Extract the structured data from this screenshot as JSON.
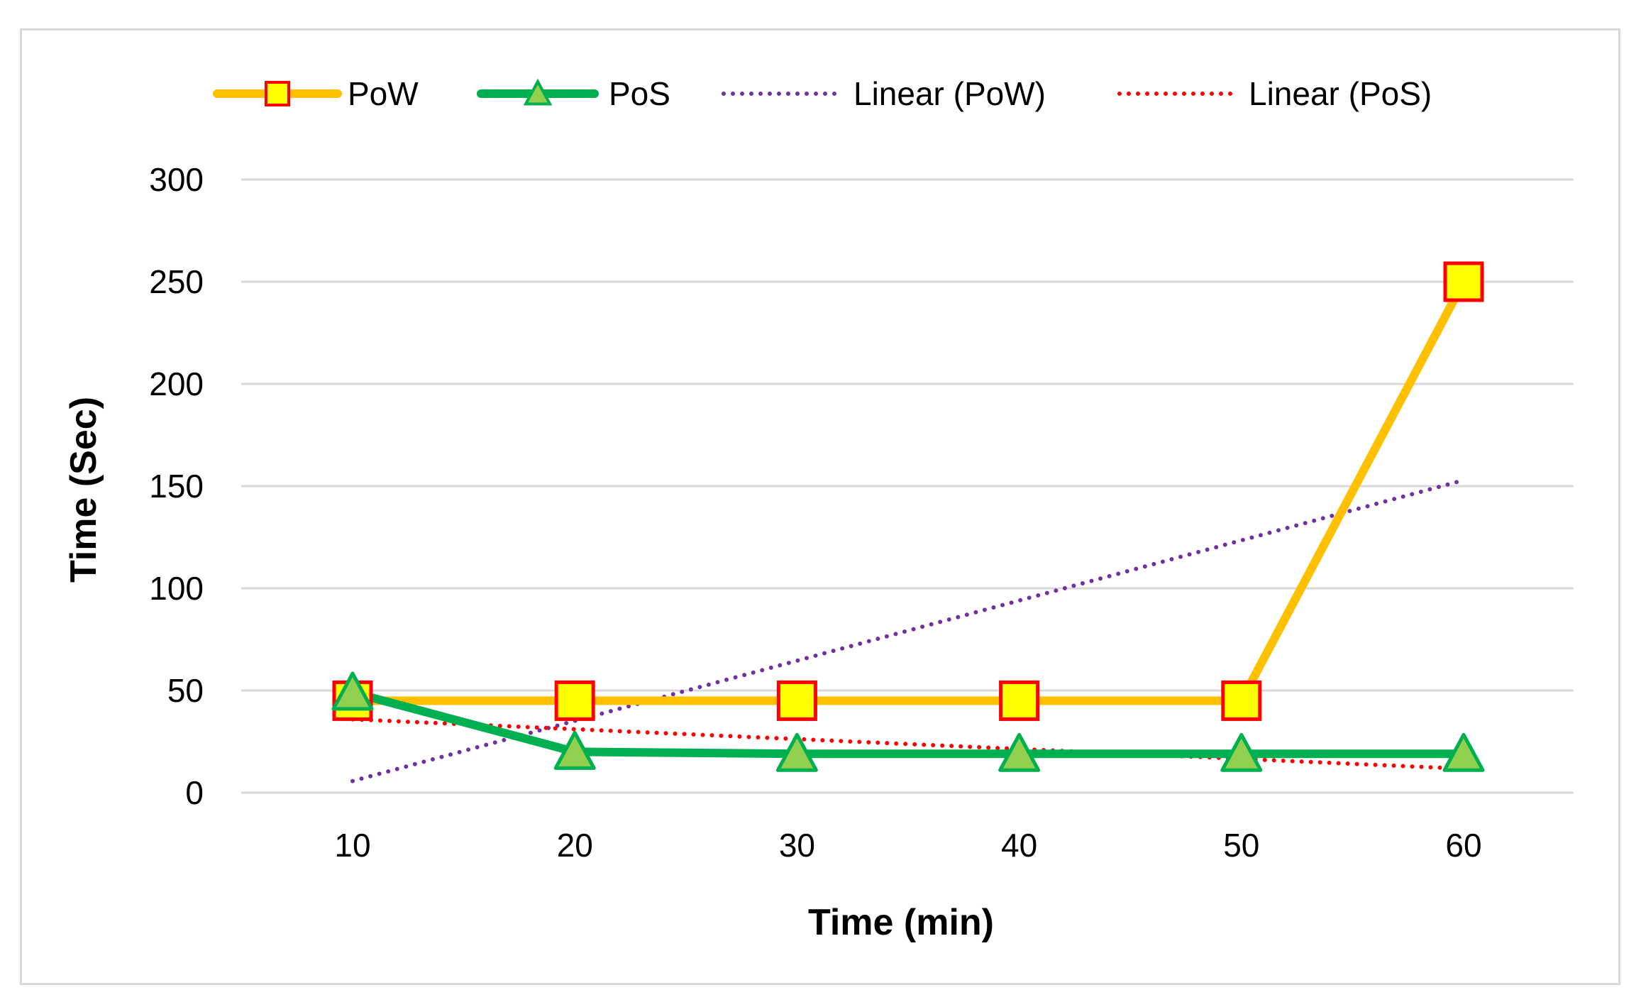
{
  "chart_data": {
    "type": "line",
    "title": "",
    "xlabel": "Time (min)",
    "ylabel": "Time (Sec)",
    "categories": [
      "10",
      "20",
      "30",
      "40",
      "50",
      "60"
    ],
    "x": [
      10,
      20,
      30,
      40,
      50,
      60
    ],
    "ylim": [
      0,
      300
    ],
    "yticks": [
      0,
      50,
      100,
      150,
      200,
      250,
      300
    ],
    "grid": true,
    "legend_position": "top",
    "series": [
      {
        "name": "PoW",
        "style": "line-markers",
        "marker": "square",
        "line_color": "#FFC000",
        "marker_fill": "#FFFF00",
        "marker_edge": "#FF0000",
        "values": [
          45,
          45,
          45,
          45,
          45,
          250
        ]
      },
      {
        "name": "PoS",
        "style": "line-markers",
        "marker": "triangle",
        "line_color": "#00B050",
        "marker_fill": "#92D050",
        "marker_edge": "#00B050",
        "values": [
          49,
          20,
          19,
          19,
          19,
          19
        ]
      },
      {
        "name": "Linear (PoW)",
        "style": "dotted-trendline",
        "line_color": "#7030A0",
        "values": [
          5.7,
          35.1,
          64.6,
          94.0,
          123.4,
          152.9
        ]
      },
      {
        "name": "Linear (PoS)",
        "style": "dotted-trendline",
        "line_color": "#FF0000",
        "values": [
          35.9,
          31.1,
          26.2,
          21.4,
          16.6,
          11.7
        ]
      }
    ]
  }
}
